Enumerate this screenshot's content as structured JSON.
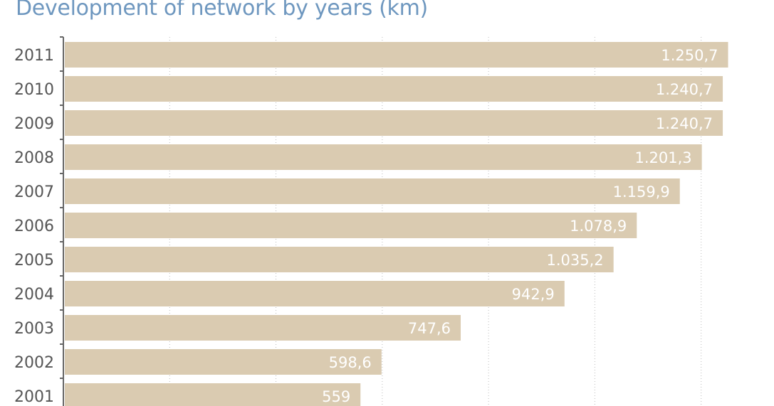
{
  "chart_data": {
    "type": "bar",
    "orientation": "horizontal",
    "title": "Development of network by years (km)",
    "categories": [
      "2011",
      "2010",
      "2009",
      "2008",
      "2007",
      "2006",
      "2005",
      "2004",
      "2003",
      "2002",
      "2001"
    ],
    "values": [
      1250.7,
      1240.7,
      1240.7,
      1201.3,
      1159.9,
      1078.9,
      1035.2,
      942.9,
      747.6,
      598.6,
      559
    ],
    "value_labels": [
      "1.250,7",
      "1.240,7",
      "1.240,7",
      "1.201,3",
      "1.159,9",
      "1.078,9",
      "1.035,2",
      "942,9",
      "747,6",
      "598,6",
      "559"
    ],
    "xlim": [
      0,
      1300
    ],
    "grid": true,
    "colors": {
      "bar": "#dacbb1",
      "title": "#6e97bf",
      "axis": "#666666",
      "grid": "#bbbbbb",
      "category_text": "#555555",
      "value_text": "#ffffff"
    }
  }
}
